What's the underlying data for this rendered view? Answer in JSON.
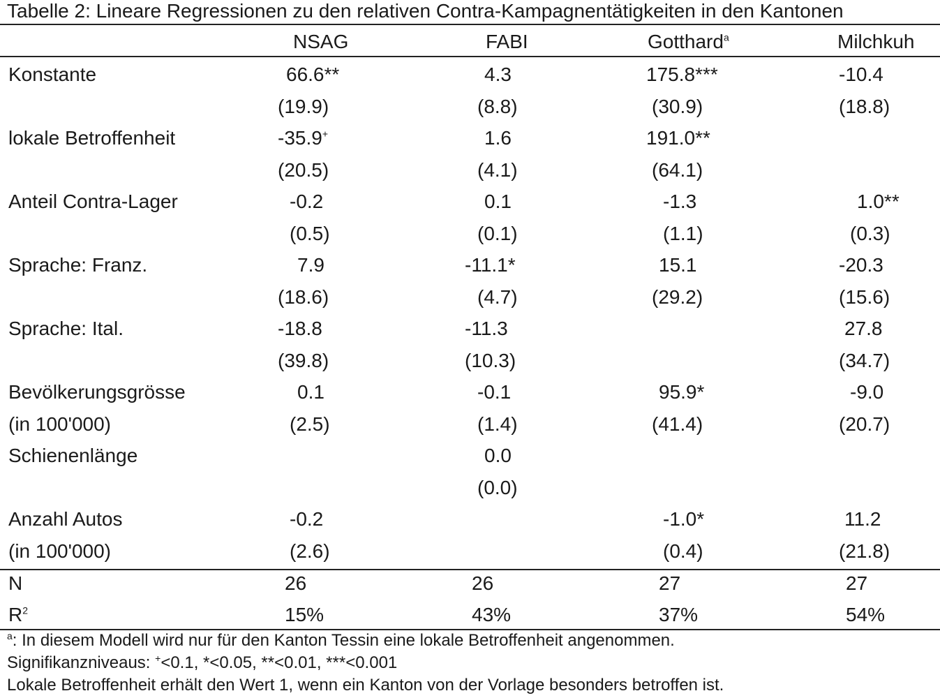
{
  "caption": "Tabelle 2: Lineare Regressionen zu den relativen Contra-Kampagnentätigkeiten in den Kantonen",
  "columns": {
    "nsag": "NSAG",
    "fabi": "FABI",
    "gotthard": "Gotthard",
    "gotthard_sup": "a",
    "milchkuh": "Milchkuh"
  },
  "rows": {
    "konstante": {
      "label": "Konstante",
      "nsag": "66.6**",
      "nsag_se": "(19.9)",
      "fabi": "4.3",
      "fabi_se": "(8.8)",
      "gotthard": "175.8***",
      "gotthard_se": "(30.9)",
      "milchkuh": "-10.4",
      "milchkuh_se": "(18.8)"
    },
    "lokale": {
      "label": "lokale Betroffenheit",
      "nsag": "-35.9",
      "nsag_sup": "+",
      "nsag_se": "(20.5)",
      "fabi": "1.6",
      "fabi_se": "(4.1)",
      "gotthard": "191.0**",
      "gotthard_se": "(64.1)"
    },
    "anteil": {
      "label": "Anteil Contra-Lager",
      "nsag": "-0.2",
      "nsag_se": "(0.5)",
      "fabi": "0.1",
      "fabi_se": "(0.1)",
      "gotthard": "-1.3",
      "gotthard_se": "(1.1)",
      "milchkuh": "1.0**",
      "milchkuh_se": "(0.3)"
    },
    "franz": {
      "label": "Sprache: Franz.",
      "nsag": "7.9",
      "nsag_se": "(18.6)",
      "fabi": "-11.1*",
      "fabi_se": "(4.7)",
      "gotthard": "15.1",
      "gotthard_se": "(29.2)",
      "milchkuh": "-20.3",
      "milchkuh_se": "(15.6)"
    },
    "ital": {
      "label": "Sprache: Ital.",
      "nsag": "-18.8",
      "nsag_se": "(39.8)",
      "fabi": "-11.3",
      "fabi_se": "(10.3)",
      "milchkuh": "27.8",
      "milchkuh_se": "(34.7)"
    },
    "bevoelkerung": {
      "label": "Bevölkerungsgrösse",
      "label2": "(in 100'000)",
      "nsag": "0.1",
      "nsag_se": "(2.5)",
      "fabi": "-0.1",
      "fabi_se": "(1.4)",
      "gotthard": "95.9*",
      "gotthard_se": "(41.4)",
      "milchkuh": "-9.0",
      "milchkuh_se": "(20.7)"
    },
    "schiene": {
      "label": "Schienenlänge",
      "fabi": "0.0",
      "fabi_se": "(0.0)"
    },
    "autos": {
      "label": "Anzahl Autos",
      "label2": "(in 100'000)",
      "nsag": "-0.2",
      "nsag_se": "(2.6)",
      "gotthard": "-1.0*",
      "gotthard_se": "(0.4)",
      "milchkuh": "11.2",
      "milchkuh_se": "(21.8)"
    },
    "n": {
      "label": "N",
      "nsag": "26",
      "fabi": "26",
      "gotthard": "27",
      "milchkuh": "27"
    },
    "r2": {
      "label": "R",
      "label_sup": "2",
      "nsag": "15%",
      "fabi": "43%",
      "gotthard": "37%",
      "milchkuh": "54%"
    }
  },
  "notes": {
    "note1_sup": "a",
    "note1": ": In diesem Modell wird nur für den Kanton Tessin eine lokale Betroffenheit angenommen.",
    "note2_prefix": "Signifikanzniveaus: ",
    "note2_sup": "+",
    "note2": "<0.1, *<0.05, **<0.01, ***<0.001",
    "note3": "Lokale Betroffenheit erhält den Wert 1, wenn ein Kanton von der Vorlage besonders betroffen ist."
  }
}
